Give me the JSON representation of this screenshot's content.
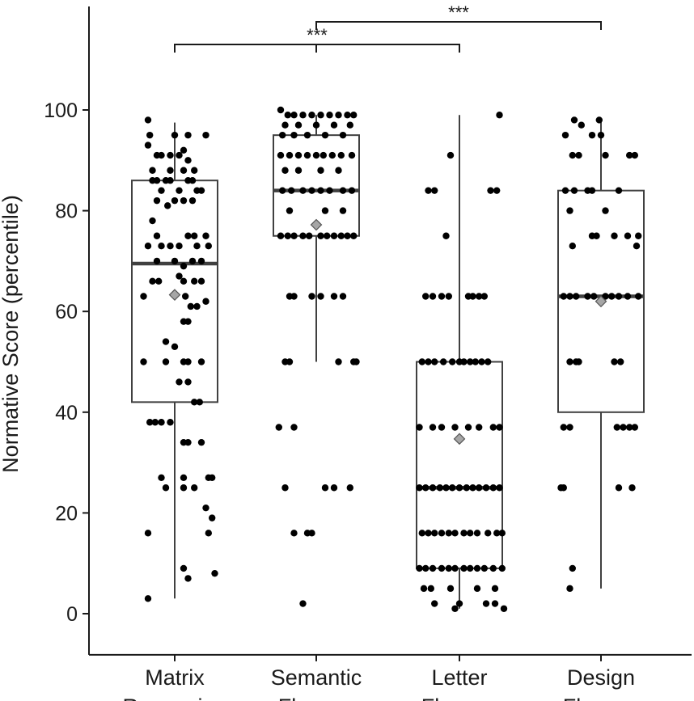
{
  "chart_data": {
    "type": "box",
    "ylabel": "Normative Score (percentile)",
    "ylim": [
      -4,
      120
    ],
    "yticks": [
      0,
      20,
      40,
      60,
      80,
      100
    ],
    "grid": false,
    "colors": {
      "box_stroke": "#404040",
      "point": "#000000",
      "mean_marker": "#a6a6a6",
      "axis": "#1a1a1a"
    },
    "categories": [
      {
        "lines": [
          "Matrix",
          "Reasoning"
        ],
        "whisker_low": 3,
        "q1": 42,
        "median": 69.5,
        "q3": 86,
        "whisker_high": 97.5,
        "mean": 63.3,
        "points": [
          [
            -0.3,
            98
          ],
          [
            -0.28,
            95
          ],
          [
            -0.3,
            93
          ],
          [
            -0.2,
            91
          ],
          [
            -0.15,
            91
          ],
          [
            -0.05,
            91
          ],
          [
            0.05,
            91
          ],
          [
            0.1,
            92
          ],
          [
            0.15,
            95
          ],
          [
            0.35,
            95
          ],
          [
            -0.25,
            88
          ],
          [
            -0.05,
            88
          ],
          [
            0.0,
            95
          ],
          [
            0.1,
            88
          ],
          [
            0.15,
            90
          ],
          [
            0.22,
            88
          ],
          [
            -0.25,
            86
          ],
          [
            -0.2,
            86
          ],
          [
            -0.1,
            86
          ],
          [
            -0.05,
            86
          ],
          [
            0.15,
            86
          ],
          [
            0.2,
            86
          ],
          [
            -0.15,
            84
          ],
          [
            0.05,
            84
          ],
          [
            0.25,
            84
          ],
          [
            0.3,
            84
          ],
          [
            -0.2,
            82
          ],
          [
            -0.08,
            81
          ],
          [
            0.0,
            82
          ],
          [
            0.1,
            82
          ],
          [
            0.2,
            82
          ],
          [
            -0.25,
            78
          ],
          [
            -0.2,
            75
          ],
          [
            0.15,
            75
          ],
          [
            0.22,
            75
          ],
          [
            0.35,
            75
          ],
          [
            -0.3,
            73
          ],
          [
            -0.15,
            73
          ],
          [
            -0.05,
            73
          ],
          [
            0.05,
            73
          ],
          [
            0.25,
            73
          ],
          [
            0.38,
            73
          ],
          [
            -0.2,
            70
          ],
          [
            0.0,
            70
          ],
          [
            0.1,
            69
          ],
          [
            0.2,
            70
          ],
          [
            0.3,
            70
          ],
          [
            -0.25,
            66
          ],
          [
            -0.18,
            66
          ],
          [
            0.05,
            67
          ],
          [
            0.1,
            66
          ],
          [
            0.22,
            66
          ],
          [
            0.3,
            66
          ],
          [
            -0.35,
            63
          ],
          [
            0.12,
            63
          ],
          [
            0.18,
            61
          ],
          [
            0.25,
            61
          ],
          [
            0.35,
            62
          ],
          [
            0.1,
            58
          ],
          [
            0.15,
            58
          ],
          [
            -0.1,
            54
          ],
          [
            0.0,
            53
          ],
          [
            -0.35,
            50
          ],
          [
            -0.1,
            50
          ],
          [
            0.1,
            50
          ],
          [
            0.15,
            50
          ],
          [
            0.3,
            50
          ],
          [
            0.05,
            46
          ],
          [
            0.15,
            46
          ],
          [
            0.22,
            42
          ],
          [
            0.28,
            42
          ],
          [
            -0.28,
            38
          ],
          [
            -0.22,
            38
          ],
          [
            -0.15,
            38
          ],
          [
            -0.05,
            38
          ],
          [
            0.1,
            34
          ],
          [
            0.15,
            34
          ],
          [
            0.3,
            34
          ],
          [
            -0.15,
            27
          ],
          [
            0.1,
            27
          ],
          [
            0.38,
            27
          ],
          [
            0.42,
            27
          ],
          [
            -0.1,
            25
          ],
          [
            0.1,
            25
          ],
          [
            0.22,
            25
          ],
          [
            0.35,
            21
          ],
          [
            0.42,
            19
          ],
          [
            -0.3,
            16
          ],
          [
            0.38,
            16
          ],
          [
            0.1,
            9
          ],
          [
            0.15,
            7
          ],
          [
            0.45,
            8
          ],
          [
            -0.3,
            3
          ]
        ]
      },
      {
        "lines": [
          "Semantic",
          "Fluency"
        ],
        "whisker_low": 50,
        "q1": 75,
        "median": 84,
        "q3": 95,
        "whisker_high": 99,
        "mean": 77.2,
        "points": [
          [
            -0.4,
            100
          ],
          [
            -0.32,
            99
          ],
          [
            -0.25,
            99
          ],
          [
            -0.15,
            99
          ],
          [
            -0.05,
            99
          ],
          [
            0.05,
            99
          ],
          [
            0.15,
            99
          ],
          [
            0.25,
            99
          ],
          [
            0.35,
            99
          ],
          [
            0.42,
            99
          ],
          [
            -0.35,
            97
          ],
          [
            -0.2,
            97
          ],
          [
            0.0,
            97
          ],
          [
            0.2,
            97
          ],
          [
            0.38,
            97
          ],
          [
            -0.38,
            95
          ],
          [
            -0.25,
            95
          ],
          [
            -0.1,
            95
          ],
          [
            0.1,
            95
          ],
          [
            0.3,
            95
          ],
          [
            -0.4,
            91
          ],
          [
            -0.3,
            91
          ],
          [
            -0.2,
            91
          ],
          [
            -0.1,
            91
          ],
          [
            0.0,
            91
          ],
          [
            0.08,
            91
          ],
          [
            0.18,
            91
          ],
          [
            0.28,
            91
          ],
          [
            0.4,
            91
          ],
          [
            -0.35,
            88
          ],
          [
            -0.2,
            88
          ],
          [
            0.05,
            88
          ],
          [
            0.25,
            88
          ],
          [
            -0.38,
            84
          ],
          [
            -0.28,
            84
          ],
          [
            -0.15,
            84
          ],
          [
            -0.05,
            84
          ],
          [
            0.05,
            84
          ],
          [
            0.15,
            84
          ],
          [
            0.3,
            84
          ],
          [
            0.4,
            84
          ],
          [
            -0.3,
            80
          ],
          [
            0.1,
            80
          ],
          [
            0.3,
            80
          ],
          [
            -0.4,
            75
          ],
          [
            -0.32,
            75
          ],
          [
            -0.25,
            75
          ],
          [
            -0.15,
            75
          ],
          [
            -0.08,
            75
          ],
          [
            0.05,
            75
          ],
          [
            0.12,
            75
          ],
          [
            0.2,
            75
          ],
          [
            0.28,
            75
          ],
          [
            0.35,
            75
          ],
          [
            0.42,
            75
          ],
          [
            -0.3,
            63
          ],
          [
            -0.25,
            63
          ],
          [
            -0.05,
            63
          ],
          [
            0.05,
            63
          ],
          [
            0.2,
            63
          ],
          [
            0.3,
            63
          ],
          [
            -0.35,
            50
          ],
          [
            -0.3,
            50
          ],
          [
            0.25,
            50
          ],
          [
            0.42,
            50
          ],
          [
            0.45,
            50
          ],
          [
            -0.42,
            37
          ],
          [
            -0.25,
            37
          ],
          [
            -0.35,
            25
          ],
          [
            0.1,
            25
          ],
          [
            0.2,
            25
          ],
          [
            0.38,
            25
          ],
          [
            -0.25,
            16
          ],
          [
            -0.1,
            16
          ],
          [
            -0.05,
            16
          ],
          [
            -0.15,
            2
          ]
        ]
      },
      {
        "lines": [
          "Letter",
          "Fluency"
        ],
        "whisker_low": 1,
        "q1": 9,
        "median": 25,
        "q3": 50,
        "whisker_high": 99,
        "mean": 34.7,
        "points": [
          [
            0.45,
            99
          ],
          [
            -0.1,
            91
          ],
          [
            -0.35,
            84
          ],
          [
            -0.28,
            84
          ],
          [
            0.35,
            84
          ],
          [
            0.42,
            84
          ],
          [
            -0.15,
            75
          ],
          [
            -0.38,
            63
          ],
          [
            -0.3,
            63
          ],
          [
            -0.2,
            63
          ],
          [
            -0.12,
            63
          ],
          [
            0.1,
            63
          ],
          [
            0.15,
            63
          ],
          [
            0.22,
            63
          ],
          [
            0.28,
            63
          ],
          [
            -0.42,
            50
          ],
          [
            -0.35,
            50
          ],
          [
            -0.28,
            50
          ],
          [
            -0.18,
            50
          ],
          [
            -0.08,
            50
          ],
          [
            0.0,
            50
          ],
          [
            0.05,
            50
          ],
          [
            0.12,
            50
          ],
          [
            0.18,
            50
          ],
          [
            0.25,
            50
          ],
          [
            0.32,
            50
          ],
          [
            -0.45,
            37
          ],
          [
            -0.3,
            37
          ],
          [
            -0.2,
            37
          ],
          [
            -0.05,
            37
          ],
          [
            0.1,
            37
          ],
          [
            0.22,
            37
          ],
          [
            0.38,
            37
          ],
          [
            0.45,
            37
          ],
          [
            -0.45,
            25
          ],
          [
            -0.38,
            25
          ],
          [
            -0.3,
            25
          ],
          [
            -0.22,
            25
          ],
          [
            -0.15,
            25
          ],
          [
            -0.08,
            25
          ],
          [
            0.0,
            25
          ],
          [
            0.08,
            25
          ],
          [
            0.15,
            25
          ],
          [
            0.22,
            25
          ],
          [
            0.3,
            25
          ],
          [
            0.38,
            25
          ],
          [
            0.45,
            25
          ],
          [
            -0.42,
            16
          ],
          [
            -0.35,
            16
          ],
          [
            -0.28,
            16
          ],
          [
            -0.2,
            16
          ],
          [
            -0.12,
            16
          ],
          [
            -0.05,
            16
          ],
          [
            0.05,
            16
          ],
          [
            0.12,
            16
          ],
          [
            0.2,
            16
          ],
          [
            0.32,
            16
          ],
          [
            0.42,
            16
          ],
          [
            0.48,
            16
          ],
          [
            -0.45,
            9
          ],
          [
            -0.38,
            9
          ],
          [
            -0.3,
            9
          ],
          [
            -0.2,
            9
          ],
          [
            -0.12,
            9
          ],
          [
            -0.05,
            9
          ],
          [
            0.05,
            9
          ],
          [
            0.12,
            9
          ],
          [
            0.2,
            9
          ],
          [
            0.28,
            9
          ],
          [
            0.38,
            9
          ],
          [
            0.48,
            9
          ],
          [
            -0.4,
            5
          ],
          [
            -0.32,
            5
          ],
          [
            -0.1,
            5
          ],
          [
            0.2,
            5
          ],
          [
            0.4,
            5
          ],
          [
            -0.28,
            2
          ],
          [
            0.0,
            2
          ],
          [
            0.3,
            2
          ],
          [
            0.4,
            2
          ],
          [
            -0.05,
            1
          ],
          [
            0.5,
            1
          ]
        ]
      },
      {
        "lines": [
          "Design",
          "Fluency"
        ],
        "whisker_low": 5,
        "q1": 40,
        "median": 63,
        "q3": 84,
        "whisker_high": 98,
        "mean": 62,
        "points": [
          [
            -0.3,
            98
          ],
          [
            -0.22,
            97
          ],
          [
            -0.02,
            98
          ],
          [
            -0.4,
            95
          ],
          [
            -0.1,
            95
          ],
          [
            0.0,
            95
          ],
          [
            -0.32,
            91
          ],
          [
            -0.25,
            91
          ],
          [
            0.05,
            91
          ],
          [
            0.32,
            91
          ],
          [
            0.38,
            91
          ],
          [
            -0.4,
            84
          ],
          [
            -0.3,
            84
          ],
          [
            -0.15,
            84
          ],
          [
            -0.1,
            84
          ],
          [
            0.2,
            84
          ],
          [
            -0.35,
            80
          ],
          [
            0.05,
            80
          ],
          [
            -0.1,
            75
          ],
          [
            -0.05,
            75
          ],
          [
            0.15,
            75
          ],
          [
            0.3,
            75
          ],
          [
            0.42,
            75
          ],
          [
            -0.32,
            73
          ],
          [
            0.4,
            73
          ],
          [
            -0.42,
            63
          ],
          [
            -0.35,
            63
          ],
          [
            -0.28,
            63
          ],
          [
            -0.15,
            63
          ],
          [
            -0.08,
            63
          ],
          [
            0.05,
            63
          ],
          [
            0.12,
            63
          ],
          [
            0.2,
            63
          ],
          [
            0.3,
            63
          ],
          [
            0.42,
            63
          ],
          [
            -0.35,
            50
          ],
          [
            -0.28,
            50
          ],
          [
            -0.25,
            50
          ],
          [
            0.15,
            50
          ],
          [
            0.22,
            50
          ],
          [
            -0.42,
            37
          ],
          [
            -0.35,
            37
          ],
          [
            0.18,
            37
          ],
          [
            0.25,
            37
          ],
          [
            0.32,
            37
          ],
          [
            0.38,
            37
          ],
          [
            -0.45,
            25
          ],
          [
            -0.42,
            25
          ],
          [
            0.2,
            25
          ],
          [
            0.35,
            25
          ],
          [
            -0.32,
            9
          ],
          [
            -0.35,
            5
          ]
        ]
      }
    ],
    "significance": [
      {
        "from": 0,
        "to": 2,
        "label": "***",
        "y": 113
      },
      {
        "from": 1,
        "to": 3,
        "label": "***",
        "y": 117.5
      }
    ]
  }
}
